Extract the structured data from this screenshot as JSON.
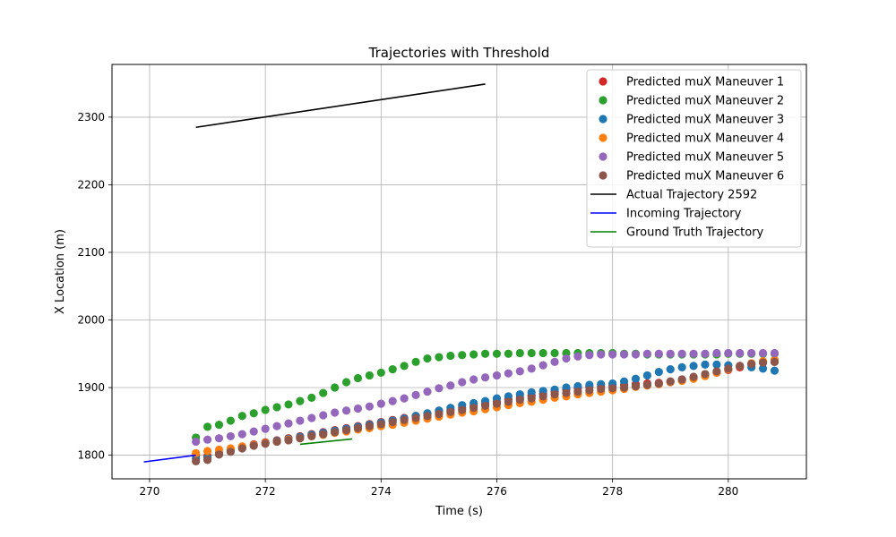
{
  "chart_data": {
    "type": "scatter",
    "title": "Trajectories with Threshold",
    "xlabel": "Time (s)",
    "ylabel": "X Location (m)",
    "xlim": [
      269.35,
      281.35
    ],
    "ylim": [
      1765,
      2378
    ],
    "xticks": [
      270,
      272,
      274,
      276,
      278,
      280
    ],
    "yticks": [
      1800,
      1900,
      2000,
      2100,
      2200,
      2300
    ],
    "grid": true,
    "legend_position": "top-right",
    "time": [
      270.8,
      271.0,
      271.2,
      271.4,
      271.6,
      271.8,
      272.0,
      272.2,
      272.4,
      272.6,
      272.8,
      273.0,
      273.2,
      273.4,
      273.6,
      273.8,
      274.0,
      274.2,
      274.4,
      274.6,
      274.8,
      275.0,
      275.2,
      275.4,
      275.6,
      275.8,
      276.0,
      276.2,
      276.4,
      276.6,
      276.8,
      277.0,
      277.2,
      277.4,
      277.6,
      277.8,
      278.0,
      278.2,
      278.4,
      278.6,
      278.8,
      279.0,
      279.2,
      279.4,
      279.6,
      279.8,
      280.0,
      280.2,
      280.4,
      280.6,
      280.8
    ],
    "series": [
      {
        "name": "Predicted muX Maneuver 1",
        "kind": "scatter",
        "color": "#d62728",
        "values": [
          1800,
          1799,
          1803,
          1808,
          1812,
          1816,
          1819,
          1822,
          1825,
          1828,
          1831,
          1834,
          1837,
          1840,
          1843,
          1846,
          1849,
          1852,
          1855,
          1858,
          1861,
          1864,
          1867,
          1870,
          1873,
          1876,
          1879,
          1882,
          1885,
          1888,
          1891,
          1894,
          1897,
          1899,
          1901,
          1902,
          1903,
          1904,
          1905,
          1906,
          1907,
          1909,
          1912,
          1915,
          1918,
          1922,
          1926,
          1930,
          1934,
          1937,
          1938
        ]
      },
      {
        "name": "Predicted muX Maneuver 2",
        "kind": "scatter",
        "color": "#2ca02c",
        "values": [
          1826,
          1842,
          1845,
          1851,
          1858,
          1862,
          1867,
          1871,
          1875,
          1880,
          1885,
          1892,
          1900,
          1908,
          1914,
          1918,
          1922,
          1927,
          1932,
          1938,
          1943,
          1945,
          1947,
          1948,
          1949,
          1950,
          1950,
          1950,
          1951,
          1951,
          1951,
          1951,
          1951,
          1951,
          1951,
          1951,
          1951,
          1950,
          1950,
          1949,
          1949,
          1949,
          1949,
          1949,
          1949,
          1949,
          1950,
          1950,
          1950,
          1950,
          1950
        ]
      },
      {
        "name": "Predicted muX Maneuver 3",
        "kind": "scatter",
        "color": "#1f77b4",
        "values": [
          1795,
          1796,
          1801,
          1807,
          1811,
          1815,
          1818,
          1821,
          1824,
          1827,
          1830,
          1833,
          1836,
          1839,
          1842,
          1845,
          1848,
          1851,
          1854,
          1858,
          1862,
          1866,
          1870,
          1874,
          1877,
          1880,
          1884,
          1887,
          1890,
          1893,
          1895,
          1897,
          1900,
          1902,
          1904,
          1905,
          1906,
          1909,
          1913,
          1918,
          1923,
          1927,
          1930,
          1932,
          1934,
          1934,
          1933,
          1932,
          1930,
          1928,
          1925
        ]
      },
      {
        "name": "Predicted muX Maneuver 4",
        "kind": "scatter",
        "color": "#ff7f0e",
        "values": [
          1803,
          1806,
          1808,
          1810,
          1813,
          1815,
          1818,
          1820,
          1823,
          1825,
          1828,
          1830,
          1833,
          1835,
          1838,
          1840,
          1843,
          1845,
          1848,
          1851,
          1854,
          1857,
          1860,
          1863,
          1865,
          1868,
          1871,
          1874,
          1877,
          1879,
          1882,
          1885,
          1887,
          1890,
          1892,
          1894,
          1896,
          1898,
          1901,
          1903,
          1905,
          1908,
          1910,
          1913,
          1917,
          1922,
          1927,
          1932,
          1936,
          1939,
          1941
        ]
      },
      {
        "name": "Predicted muX Maneuver 5",
        "kind": "scatter",
        "color": "#9467bd",
        "values": [
          1820,
          1823,
          1825,
          1828,
          1831,
          1835,
          1839,
          1843,
          1847,
          1851,
          1855,
          1859,
          1863,
          1866,
          1869,
          1872,
          1876,
          1880,
          1884,
          1889,
          1894,
          1899,
          1903,
          1908,
          1912,
          1915,
          1918,
          1921,
          1924,
          1928,
          1933,
          1938,
          1943,
          1946,
          1948,
          1949,
          1949,
          1949,
          1949,
          1950,
          1950,
          1950,
          1950,
          1950,
          1950,
          1951,
          1951,
          1951,
          1951,
          1951,
          1951
        ]
      },
      {
        "name": "Predicted muX Maneuver 6",
        "kind": "scatter",
        "color": "#8c564b",
        "values": [
          1791,
          1793,
          1801,
          1805,
          1810,
          1814,
          1817,
          1820,
          1822,
          1825,
          1828,
          1831,
          1834,
          1837,
          1840,
          1843,
          1846,
          1849,
          1852,
          1855,
          1858,
          1861,
          1864,
          1867,
          1870,
          1873,
          1876,
          1879,
          1882,
          1884,
          1887,
          1890,
          1892,
          1894,
          1896,
          1898,
          1899,
          1900,
          1902,
          1904,
          1906,
          1909,
          1912,
          1916,
          1920,
          1924,
          1928,
          1932,
          1935,
          1937,
          1938
        ]
      },
      {
        "name": "Actual Trajectory 2592",
        "kind": "line",
        "color": "#000000",
        "points": [
          [
            270.8,
            2285
          ],
          [
            275.8,
            2349
          ]
        ]
      },
      {
        "name": "Incoming Trajectory",
        "kind": "line",
        "color": "#0000ff",
        "points": [
          [
            269.9,
            1790
          ],
          [
            270.8,
            1800
          ]
        ]
      },
      {
        "name": "Ground Truth Trajectory",
        "kind": "line",
        "color": "#008000",
        "points": [
          [
            272.6,
            1816
          ],
          [
            273.5,
            1824
          ]
        ]
      }
    ]
  }
}
